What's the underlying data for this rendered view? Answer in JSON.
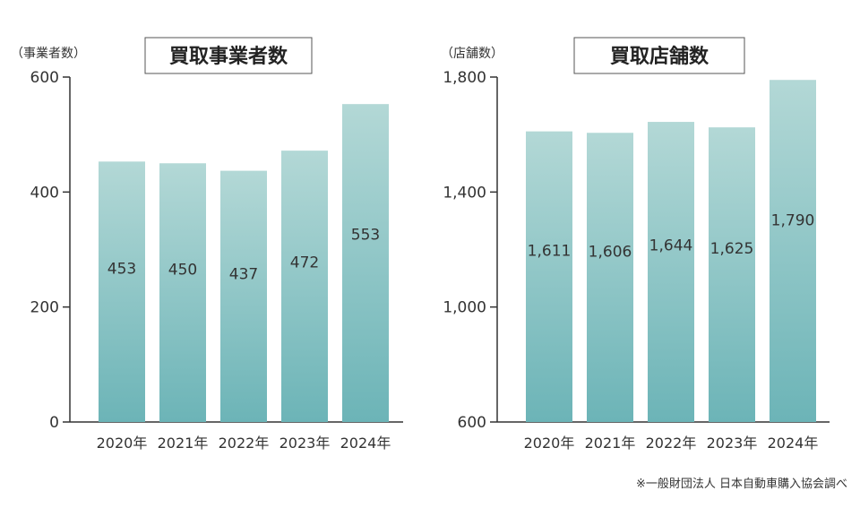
{
  "chart_data": [
    {
      "type": "bar",
      "title": "買取事業者数",
      "unit_label": "（事業者数）",
      "xlabel": "",
      "ylabel": "事業者数",
      "categories": [
        "2020年",
        "2021年",
        "2022年",
        "2023年",
        "2024年"
      ],
      "values": [
        453,
        450,
        437,
        472,
        553
      ],
      "data_labels": [
        "453",
        "450",
        "437",
        "472",
        "553"
      ],
      "ylim": [
        0,
        600
      ],
      "yticks": [
        0,
        200,
        400,
        600
      ],
      "ytick_labels": [
        "0",
        "200",
        "400",
        "600"
      ],
      "grid": false,
      "legend": "none"
    },
    {
      "type": "bar",
      "title": "買取店舗数",
      "unit_label": "（店舗数）",
      "xlabel": "",
      "ylabel": "店舗数",
      "categories": [
        "2020年",
        "2021年",
        "2022年",
        "2023年",
        "2024年"
      ],
      "values": [
        1611,
        1606,
        1644,
        1625,
        1790
      ],
      "data_labels": [
        "1,611",
        "1,606",
        "1,644",
        "1,625",
        "1,790"
      ],
      "ylim": [
        600,
        1800
      ],
      "yticks": [
        600,
        1000,
        1400,
        1800
      ],
      "ytick_labels": [
        "600",
        "1,000",
        "1,400",
        "1,800"
      ],
      "grid": false,
      "legend": "none"
    }
  ],
  "colors": {
    "bar_top": "#b3d8d6",
    "bar_bottom": "#6cb4b7",
    "axis": "#333333",
    "text": "#333333"
  },
  "footnote": "※一般財団法人 日本自動車購入協会調べ"
}
